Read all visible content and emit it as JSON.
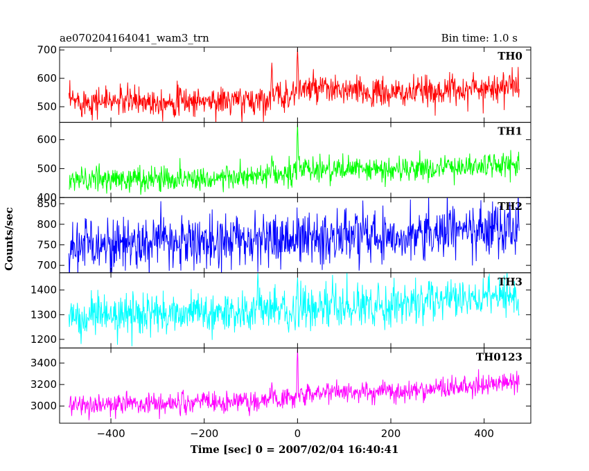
{
  "chart_data": {
    "type": "line",
    "title": "ae070204164041_wam3_trn",
    "bin_time": "Bin time: 1.0 s",
    "xlabel": "Time [sec] 0 = 2007/02/04 16:40:41",
    "ylabel": "Counts/sec",
    "xlim": [
      -510,
      500
    ],
    "x_range": [
      -490,
      475
    ],
    "x_ticks": [
      -400,
      -200,
      0,
      200,
      400
    ],
    "event_time": 0,
    "panels": [
      {
        "name": "TH0",
        "color": "#ff0000",
        "ylim": [
          445,
          710
        ],
        "y_ticks": [
          500,
          600,
          700
        ],
        "trend": [
          [
            -490,
            520
          ],
          [
            -100,
            520
          ],
          [
            -10,
            545
          ],
          [
            0,
            565
          ],
          [
            200,
            545
          ],
          [
            475,
            575
          ]
        ],
        "noise_sd": 26,
        "spikes": [
          {
            "x": 0,
            "y": 705
          },
          {
            "x": -55,
            "y": 655
          }
        ]
      },
      {
        "name": "TH1",
        "color": "#00ff00",
        "ylim": [
          400,
          660
        ],
        "y_ticks": [
          400,
          500,
          600
        ],
        "trend": [
          [
            -490,
            460
          ],
          [
            -100,
            470
          ],
          [
            -10,
            480
          ],
          [
            0,
            500
          ],
          [
            200,
            495
          ],
          [
            475,
            515
          ]
        ],
        "noise_sd": 22,
        "spikes": [
          {
            "x": 0,
            "y": 655
          },
          {
            "x": -55,
            "y": 545
          }
        ]
      },
      {
        "name": "TH2",
        "color": "#0000ff",
        "ylim": [
          682,
          865
        ],
        "y_ticks": [
          700,
          750,
          800,
          850
        ],
        "trend": [
          [
            -490,
            750
          ],
          [
            0,
            765
          ],
          [
            475,
            790
          ]
        ],
        "noise_sd": 32,
        "spikes": []
      },
      {
        "name": "TH3",
        "color": "#00ffff",
        "ylim": [
          1165,
          1470
        ],
        "y_ticks": [
          1200,
          1300,
          1400
        ],
        "trend": [
          [
            -490,
            1290
          ],
          [
            0,
            1320
          ],
          [
            475,
            1375
          ]
        ],
        "noise_sd": 40,
        "spikes": [
          {
            "x": -85,
            "y": 1470
          },
          {
            "x": 0,
            "y": 1450
          }
        ]
      },
      {
        "name": "TH0123",
        "color": "#ff00ff",
        "ylim": [
          2840,
          3540
        ],
        "y_ticks": [
          3000,
          3200,
          3400
        ],
        "trend": [
          [
            -490,
            3010
          ],
          [
            -100,
            3040
          ],
          [
            -10,
            3080
          ],
          [
            0,
            3130
          ],
          [
            200,
            3130
          ],
          [
            475,
            3220
          ]
        ],
        "noise_sd": 50,
        "spikes": [
          {
            "x": 0,
            "y": 3530
          },
          {
            "x": -55,
            "y": 3220
          }
        ]
      }
    ]
  }
}
